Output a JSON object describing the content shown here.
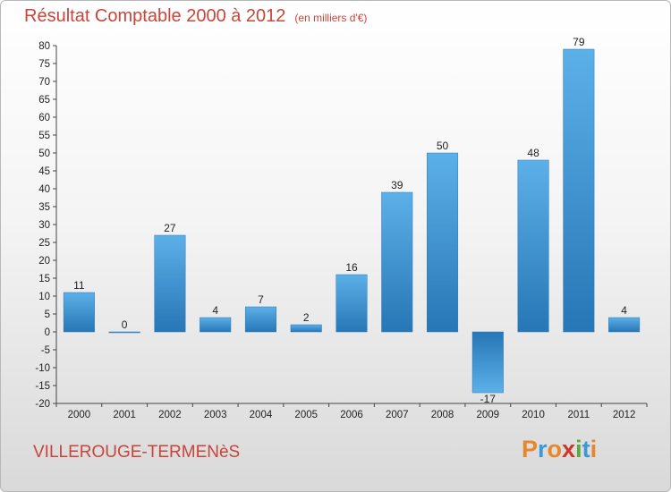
{
  "header": {
    "title": "Résultat Comptable 2000 à 2012",
    "unit": "(en milliers d'€)"
  },
  "footer": {
    "commune": "VILLEROUGE-TERMENèS",
    "logo": "Proxiti"
  },
  "colors": {
    "title": "#c8453a",
    "bar_light": "#5aaee6",
    "bar_dark": "#2a78b8"
  },
  "chart_data": {
    "type": "bar",
    "title": "Résultat Comptable 2000 à 2012",
    "subtitle": "(en milliers d'€)",
    "categories": [
      "2000",
      "2001",
      "2002",
      "2003",
      "2004",
      "2005",
      "2006",
      "2007",
      "2008",
      "2009",
      "2010",
      "2011",
      "2012"
    ],
    "values": [
      11,
      0,
      27,
      4,
      7,
      2,
      16,
      39,
      50,
      -17,
      48,
      79,
      4
    ],
    "labels": [
      "11",
      "0",
      "27",
      "4",
      "7",
      "2",
      "16",
      "39",
      "50",
      "-17",
      "48",
      "79",
      "4"
    ],
    "ylim": [
      -20,
      80
    ],
    "ytick_step": 5,
    "yticks": [
      "80",
      "75",
      "70",
      "65",
      "60",
      "55",
      "50",
      "45",
      "40",
      "35",
      "30",
      "25",
      "20",
      "15",
      "10",
      "5",
      "0",
      "-5",
      "-10",
      "-15",
      "-20"
    ],
    "grid": false
  }
}
